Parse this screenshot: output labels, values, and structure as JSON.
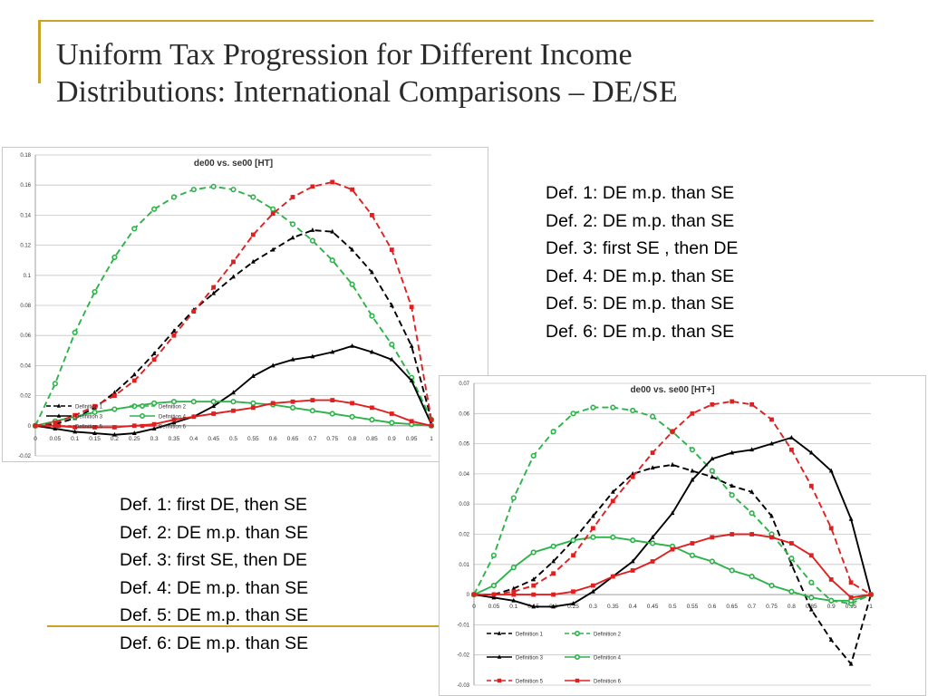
{
  "slide": {
    "title_lines": [
      "Uniform Tax Progression for Different Income",
      "Distributions: International Comparisons – DE/SE"
    ],
    "accent_color": "#c9a227"
  },
  "notes_chart1": [
    "Def. 1: first DE, then SE",
    "Def. 2: DE m.p. than SE",
    "Def. 3: first SE, then DE",
    "Def. 4: DE m.p. than SE",
    "Def. 5: DE m.p. than SE",
    "Def. 6: DE m.p. than SE"
  ],
  "notes_chart2": [
    "Def. 1: DE m.p. than SE",
    "Def. 2: DE m.p. than SE",
    "Def. 3: first SE , then DE",
    "Def. 4: DE m.p. than SE",
    "Def. 5: DE m.p. than SE",
    "Def. 6: DE m.p. than SE"
  ],
  "chart_data": [
    {
      "type": "line",
      "title": "de00 vs. se00 [HT]",
      "xlabel": "",
      "ylabel": "",
      "x": [
        0,
        0.05,
        0.1,
        0.15,
        0.2,
        0.25,
        0.3,
        0.35,
        0.4,
        0.45,
        0.5,
        0.55,
        0.6,
        0.65,
        0.7,
        0.75,
        0.8,
        0.85,
        0.9,
        0.95,
        1
      ],
      "x_tick_labels": [
        "0",
        "0.05",
        "0.1",
        "0.15",
        "0.2",
        "0.25",
        "0.3",
        "0.35",
        "0.4",
        "0.45",
        "0.5",
        "0.55",
        "0.6",
        "0.65",
        "0.7",
        "0.75",
        "0.8",
        "0.85",
        "0.9",
        "0.95",
        "1"
      ],
      "ylim": [
        -0.02,
        0.18
      ],
      "y_ticks": [
        -0.02,
        0,
        0.02,
        0.04,
        0.06,
        0.08,
        0.1,
        0.12,
        0.14,
        0.16,
        0.18
      ],
      "y_tick_labels": [
        "-0.02",
        "0",
        "0.02",
        "0.04",
        "0.06",
        "0.08",
        "0.1",
        "0.12",
        "0.14",
        "0.16",
        "0.18"
      ],
      "grid": true,
      "legend_position": "bottom-left",
      "series": [
        {
          "name": "Definition 1",
          "color": "#000000",
          "dash": true,
          "marker": "triangle",
          "values": [
            0,
            0.001,
            0.005,
            0.012,
            0.022,
            0.034,
            0.048,
            0.063,
            0.077,
            0.088,
            0.099,
            0.109,
            0.117,
            0.125,
            0.13,
            0.129,
            0.117,
            0.102,
            0.08,
            0.053,
            0.004
          ]
        },
        {
          "name": "Definition 2",
          "color": "#2db34a",
          "dash": true,
          "marker": "circle",
          "values": [
            0,
            0.028,
            0.062,
            0.089,
            0.112,
            0.131,
            0.144,
            0.152,
            0.157,
            0.159,
            0.157,
            0.152,
            0.144,
            0.134,
            0.123,
            0.11,
            0.094,
            0.073,
            0.054,
            0.032,
            0.004
          ]
        },
        {
          "name": "Definition 3",
          "color": "#000000",
          "dash": false,
          "marker": "triangle",
          "values": [
            0,
            -0.002,
            -0.004,
            -0.005,
            -0.006,
            -0.005,
            -0.002,
            0.002,
            0.006,
            0.013,
            0.022,
            0.033,
            0.04,
            0.044,
            0.046,
            0.049,
            0.053,
            0.049,
            0.044,
            0.03,
            0.001
          ]
        },
        {
          "name": "Definition 4",
          "color": "#2db34a",
          "dash": false,
          "marker": "circle",
          "values": [
            0,
            0.003,
            0.006,
            0.009,
            0.011,
            0.013,
            0.015,
            0.016,
            0.016,
            0.016,
            0.016,
            0.015,
            0.014,
            0.012,
            0.01,
            0.008,
            0.006,
            0.004,
            0.002,
            0.001,
            0
          ]
        },
        {
          "name": "Definition 5",
          "color": "#e02020",
          "dash": true,
          "marker": "square",
          "values": [
            0,
            0.002,
            0.007,
            0.013,
            0.02,
            0.03,
            0.044,
            0.06,
            0.076,
            0.092,
            0.109,
            0.127,
            0.141,
            0.152,
            0.159,
            0.162,
            0.157,
            0.14,
            0.117,
            0.079,
            0.004
          ]
        },
        {
          "name": "Definition 6",
          "color": "#e02020",
          "dash": false,
          "marker": "square",
          "values": [
            0,
            0,
            -0.001,
            -0.001,
            -0.001,
            0,
            0.001,
            0.004,
            0.006,
            0.008,
            0.01,
            0.012,
            0.015,
            0.016,
            0.017,
            0.017,
            0.015,
            0.012,
            0.008,
            0.003,
            0
          ]
        }
      ]
    },
    {
      "type": "line",
      "title": "de00 vs. se00 [HT+]",
      "xlabel": "",
      "ylabel": "",
      "x": [
        0,
        0.05,
        0.1,
        0.15,
        0.2,
        0.25,
        0.3,
        0.35,
        0.4,
        0.45,
        0.5,
        0.55,
        0.6,
        0.65,
        0.7,
        0.75,
        0.8,
        0.85,
        0.9,
        0.95,
        1
      ],
      "x_tick_labels": [
        "0",
        "0.05",
        "0.1",
        "0.15",
        "0.2",
        "0.25",
        "0.3",
        "0.35",
        "0.4",
        "0.45",
        "0.5",
        "0.55",
        "0.6",
        "0.65",
        "0.7",
        "0.75",
        "0.8",
        "0.85",
        "0.9",
        "0.95",
        "1"
      ],
      "ylim": [
        -0.03,
        0.07
      ],
      "y_ticks": [
        -0.03,
        -0.02,
        -0.01,
        0,
        0.01,
        0.02,
        0.03,
        0.04,
        0.05,
        0.06,
        0.07
      ],
      "y_tick_labels": [
        "-0.03",
        "-0.02",
        "-0.01",
        "0",
        "0.01",
        "0.02",
        "0.03",
        "0.04",
        "0.05",
        "0.06",
        "0.07"
      ],
      "grid": true,
      "legend_position": "bottom",
      "series": [
        {
          "name": "Definition 1",
          "color": "#000000",
          "dash": true,
          "marker": "triangle",
          "values": [
            0,
            0,
            0.002,
            0.005,
            0.011,
            0.018,
            0.026,
            0.034,
            0.04,
            0.042,
            0.043,
            0.041,
            0.039,
            0.036,
            0.034,
            0.026,
            0.01,
            -0.005,
            -0.015,
            -0.023,
            0
          ]
        },
        {
          "name": "Definition 2",
          "color": "#2db34a",
          "dash": true,
          "marker": "circle",
          "values": [
            0,
            0.013,
            0.032,
            0.046,
            0.054,
            0.06,
            0.062,
            0.062,
            0.061,
            0.059,
            0.054,
            0.048,
            0.041,
            0.033,
            0.027,
            0.02,
            0.012,
            0.004,
            -0.002,
            -0.003,
            0
          ]
        },
        {
          "name": "Definition 3",
          "color": "#000000",
          "dash": false,
          "marker": "triangle",
          "values": [
            0,
            -0.001,
            -0.002,
            -0.004,
            -0.004,
            -0.003,
            0.001,
            0.006,
            0.011,
            0.019,
            0.027,
            0.038,
            0.045,
            0.047,
            0.048,
            0.05,
            0.052,
            0.047,
            0.041,
            0.025,
            0
          ]
        },
        {
          "name": "Definition 4",
          "color": "#2db34a",
          "dash": false,
          "marker": "circle",
          "values": [
            0,
            0.003,
            0.009,
            0.014,
            0.016,
            0.018,
            0.019,
            0.019,
            0.018,
            0.017,
            0.016,
            0.013,
            0.011,
            0.008,
            0.006,
            0.003,
            0.001,
            -0.001,
            -0.002,
            -0.002,
            0
          ]
        },
        {
          "name": "Definition 5",
          "color": "#e02020",
          "dash": true,
          "marker": "square",
          "values": [
            0,
            0,
            0.001,
            0.003,
            0.007,
            0.013,
            0.022,
            0.031,
            0.039,
            0.047,
            0.054,
            0.06,
            0.063,
            0.064,
            0.063,
            0.058,
            0.048,
            0.036,
            0.022,
            0.004,
            0
          ]
        },
        {
          "name": "Definition 6",
          "color": "#e02020",
          "dash": false,
          "marker": "square",
          "values": [
            0,
            0,
            0,
            0,
            0,
            0.001,
            0.003,
            0.006,
            0.008,
            0.011,
            0.015,
            0.017,
            0.019,
            0.02,
            0.02,
            0.019,
            0.017,
            0.013,
            0.005,
            -0.001,
            0
          ]
        }
      ]
    }
  ]
}
